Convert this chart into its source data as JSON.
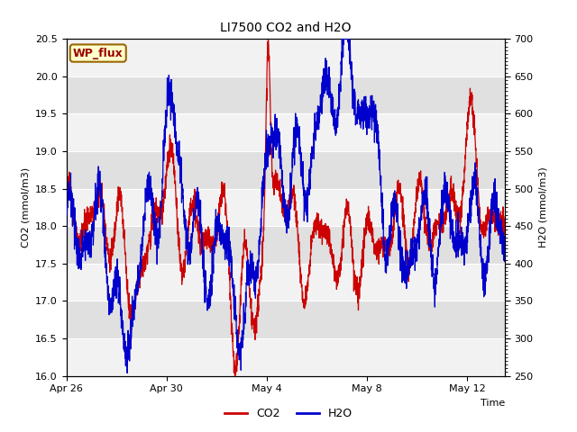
{
  "title": "LI7500 CO2 and H2O",
  "xlabel": "Time",
  "ylabel_left": "CO2 (mmol/m3)",
  "ylabel_right": "H2O (mmol/m3)",
  "ylim_left": [
    16.0,
    20.5
  ],
  "ylim_right": [
    250,
    700
  ],
  "yticks_left": [
    16.0,
    16.5,
    17.0,
    17.5,
    18.0,
    18.5,
    19.0,
    19.5,
    20.0,
    20.5
  ],
  "yticks_right": [
    250,
    300,
    350,
    400,
    450,
    500,
    550,
    600,
    650,
    700
  ],
  "co2_color": "#cc0000",
  "h2o_color": "#0000cc",
  "legend_co2": "CO2",
  "legend_h2o": "H2O",
  "wp_flux_label": "WP_flux",
  "wp_flux_bg": "#ffffcc",
  "wp_flux_border": "#996600",
  "wp_flux_text_color": "#990000",
  "background_color": "#e0e0e0",
  "band_color_light": "#f2f2f2",
  "title_fontsize": 10,
  "axis_fontsize": 8,
  "tick_fontsize": 8,
  "legend_fontsize": 9,
  "xlim": [
    0,
    17.5
  ],
  "x_tick_positions_days": [
    0,
    4,
    8,
    12,
    16
  ],
  "x_tick_labels": [
    "Apr 26",
    "Apr 30",
    "May 4",
    "May 8",
    "May 12"
  ]
}
